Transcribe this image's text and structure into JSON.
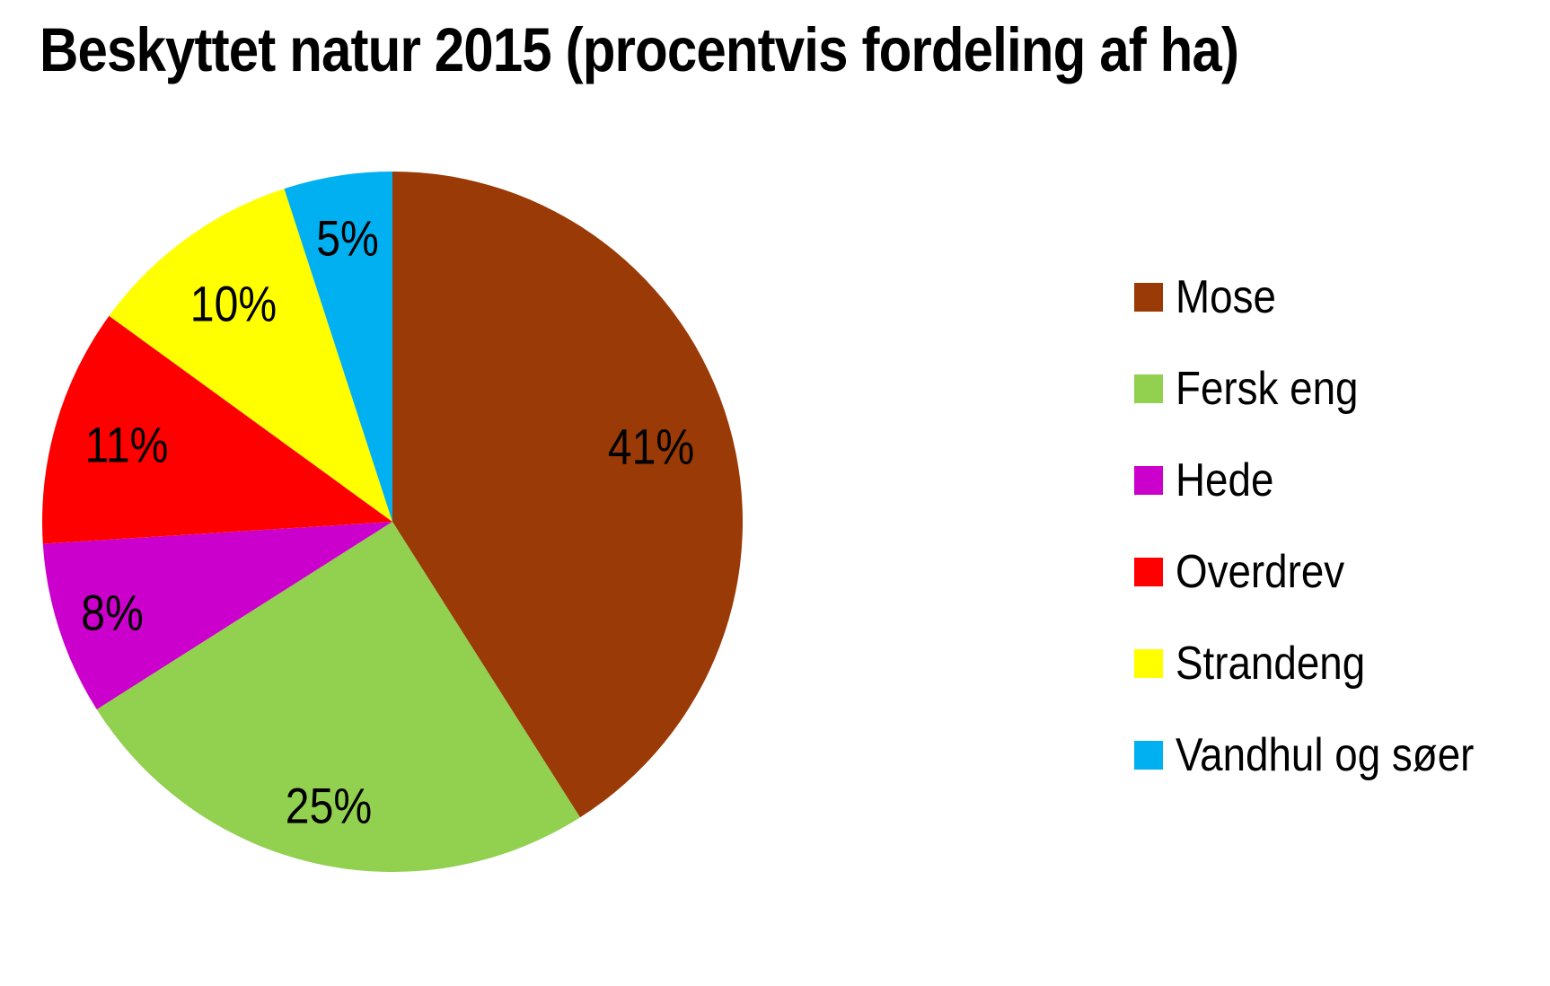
{
  "chart_data": {
    "type": "pie",
    "title": "Beskyttet natur 2015 (procentvis fordeling af ha)",
    "categories": [
      "Mose",
      "Fersk eng",
      "Hede",
      "Overdrev",
      "Strandeng",
      "Vandhul og søer"
    ],
    "values": [
      41,
      25,
      8,
      11,
      10,
      5
    ],
    "data_labels": [
      "41%",
      "25%",
      "8%",
      "11%",
      "10%",
      "5%"
    ],
    "colors": [
      "#9A3A06",
      "#92D050",
      "#CC00CC",
      "#FF0000",
      "#FFFF00",
      "#00B0F0"
    ],
    "values_unit": "%",
    "start_angle_deg": 0,
    "direction": "clockwise",
    "legend_position": "right",
    "label_radius_frac": [
      0.77,
      0.83,
      0.84,
      0.79,
      0.77,
      0.82
    ],
    "background_color": "#FFFFFF",
    "text_color": "#000000"
  }
}
